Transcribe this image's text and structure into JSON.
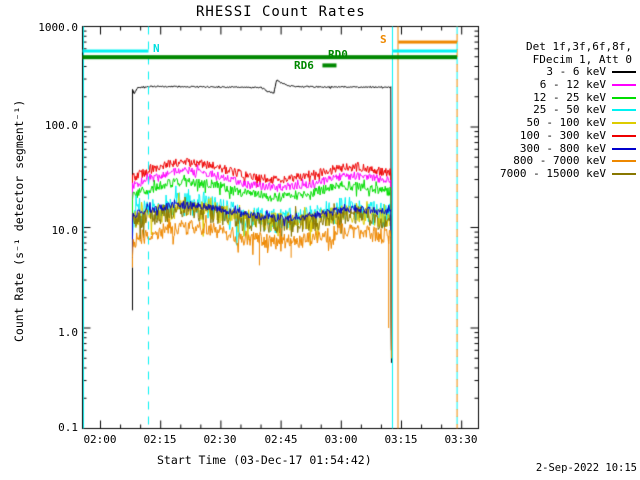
{
  "title": "RHESSI Count Rates",
  "footer": {
    "timestamp": "2-Sep-2022 10:15"
  },
  "chart_data": {
    "type": "line",
    "title": "RHESSI Count Rates",
    "xlabel": "Start Time (03-Dec-17 01:54:42)",
    "ylabel": "Count Rate (s⁻¹ detector segment⁻¹)",
    "yscale": "log",
    "ylim": [
      0.1,
      1000.0
    ],
    "y_ticks": [
      "1000.0",
      "100.0",
      "10.0",
      "1.0",
      "0.1"
    ],
    "x_ticks": [
      "02:00",
      "02:15",
      "02:30",
      "02:45",
      "03:00",
      "03:15",
      "03:30"
    ],
    "x_unit": "minutes after 02:00",
    "legend_header_1": "Det 1f,3f,6f,8f,",
    "legend_header_2": "FDecim 1, Att 0",
    "legend_position": "right-outside",
    "grid": false,
    "draw_order": [
      0,
      5,
      1,
      2,
      3,
      4,
      8,
      6,
      7
    ],
    "series": [
      {
        "name": "3 - 6 keV",
        "color": "#000000",
        "noise": 0.015,
        "rise_from": 1.5,
        "drop_to": 0.45,
        "points": [
          [
            7.97,
            236
          ],
          [
            8.4,
            214
          ],
          [
            9.3,
            248
          ],
          [
            12,
            252
          ],
          [
            20,
            252
          ],
          [
            30,
            250
          ],
          [
            40,
            247
          ],
          [
            41.6,
            226
          ],
          [
            43.2,
            218
          ],
          [
            43.9,
            295
          ],
          [
            45.2,
            272
          ],
          [
            47,
            258
          ],
          [
            50,
            252
          ],
          [
            56,
            250
          ],
          [
            62,
            250
          ],
          [
            68,
            248
          ],
          [
            72.5,
            250
          ]
        ]
      },
      {
        "name": "6 - 12 keV",
        "color": "#FF00FF",
        "noise": 0.09,
        "rise_from": 4,
        "drop_to": 0.6,
        "points": [
          [
            7.97,
            26
          ],
          [
            12,
            30
          ],
          [
            18,
            36
          ],
          [
            21,
            37
          ],
          [
            28,
            34
          ],
          [
            36,
            27
          ],
          [
            44,
            25
          ],
          [
            52,
            27
          ],
          [
            60,
            32
          ],
          [
            63,
            33
          ],
          [
            69,
            31
          ],
          [
            72.5,
            29
          ]
        ]
      },
      {
        "name": "12 - 25 keV",
        "color": "#00DD00",
        "noise": 0.11,
        "rise_from": 4,
        "drop_to": 0.6,
        "points": [
          [
            7.97,
            21
          ],
          [
            12,
            24
          ],
          [
            18,
            28
          ],
          [
            21,
            29
          ],
          [
            28,
            27
          ],
          [
            36,
            22
          ],
          [
            44,
            20
          ],
          [
            52,
            22
          ],
          [
            60,
            26
          ],
          [
            63,
            26
          ],
          [
            69,
            24
          ],
          [
            72.5,
            23
          ]
        ]
      },
      {
        "name": "25 - 50 keV",
        "color": "#00F2F2",
        "noise": 0.28,
        "rise_from": 4,
        "drop_to": 0.5,
        "points": [
          [
            7.97,
            13
          ],
          [
            12,
            15
          ],
          [
            18,
            17.5
          ],
          [
            21,
            18
          ],
          [
            28,
            16.5
          ],
          [
            36,
            13
          ],
          [
            44,
            12
          ],
          [
            52,
            13
          ],
          [
            60,
            15.5
          ],
          [
            63,
            16
          ],
          [
            69,
            14
          ],
          [
            72.5,
            13.5
          ]
        ]
      },
      {
        "name": "50 - 100 keV",
        "color": "#DDCC00",
        "noise": 0.22,
        "rise_from": 4,
        "drop_to": 0.6,
        "points": [
          [
            7.97,
            12
          ],
          [
            12,
            13.5
          ],
          [
            18,
            15
          ],
          [
            21,
            15.5
          ],
          [
            28,
            14.5
          ],
          [
            36,
            12.5
          ],
          [
            44,
            11.5
          ],
          [
            52,
            12
          ],
          [
            60,
            13.5
          ],
          [
            63,
            14
          ],
          [
            69,
            13
          ],
          [
            72.5,
            12.5
          ]
        ]
      },
      {
        "name": "100 - 300 keV",
        "color": "#EE0000",
        "noise": 0.1,
        "rise_from": 4,
        "drop_to": 0.6,
        "points": [
          [
            7.97,
            31
          ],
          [
            9,
            33
          ],
          [
            12,
            37
          ],
          [
            15,
            41
          ],
          [
            18,
            44
          ],
          [
            21,
            45
          ],
          [
            24,
            44
          ],
          [
            28,
            41
          ],
          [
            32,
            37
          ],
          [
            36,
            33
          ],
          [
            40,
            31
          ],
          [
            44,
            30
          ],
          [
            48,
            31
          ],
          [
            52,
            33
          ],
          [
            56,
            36
          ],
          [
            60,
            39
          ],
          [
            63,
            40
          ],
          [
            66,
            39
          ],
          [
            69,
            37
          ],
          [
            72.5,
            35
          ]
        ]
      },
      {
        "name": "300 - 800 keV",
        "color": "#0000CC",
        "noise": 0.09,
        "rise_from": 4,
        "drop_to": 0.6,
        "points": [
          [
            7.97,
            13.5
          ],
          [
            12,
            15
          ],
          [
            18,
            16.5
          ],
          [
            21,
            17
          ],
          [
            28,
            16
          ],
          [
            36,
            13.5
          ],
          [
            44,
            12.5
          ],
          [
            52,
            13
          ],
          [
            60,
            15
          ],
          [
            63,
            15.5
          ],
          [
            69,
            14.5
          ],
          [
            72.5,
            14
          ]
        ]
      },
      {
        "name": "800 - 7000 keV",
        "color": "#EE8800",
        "noise": 0.18,
        "rise_from": 4,
        "drop_to": 0.5,
        "spike_p": 0.012,
        "downspikes": [
          [
            39.6,
            4.2
          ],
          [
            47.5,
            5.0
          ],
          [
            71.8,
            1.0
          ]
        ],
        "points": [
          [
            7.97,
            7.5
          ],
          [
            12,
            8.5
          ],
          [
            18,
            9.8
          ],
          [
            21,
            10.2
          ],
          [
            28,
            9.5
          ],
          [
            36,
            8
          ],
          [
            44,
            7.2
          ],
          [
            52,
            7.8
          ],
          [
            60,
            9.3
          ],
          [
            63,
            9.5
          ],
          [
            69,
            8.5
          ],
          [
            72.5,
            8.2
          ]
        ]
      },
      {
        "name": "7000 - 15000 keV",
        "color": "#887700",
        "noise": 0.22,
        "rise_from": 4,
        "drop_to": 0.6,
        "points": [
          [
            7.97,
            11.5
          ],
          [
            12,
            13
          ],
          [
            18,
            14.5
          ],
          [
            21,
            15
          ],
          [
            28,
            14
          ],
          [
            36,
            12
          ],
          [
            44,
            11
          ],
          [
            52,
            11.5
          ],
          [
            60,
            13
          ],
          [
            63,
            13.5
          ],
          [
            69,
            12.5
          ],
          [
            72.5,
            12
          ]
        ]
      }
    ],
    "flag_bars": [
      {
        "label": "N",
        "color": "#00F2F2",
        "from_min": -4.48,
        "to_min": 11.96,
        "value": 570,
        "thick": 3
      },
      {
        "label": "",
        "color": "#00F2F2",
        "from_min": 72.9,
        "to_min": 88.85,
        "value": 570,
        "thick": 3
      },
      {
        "label": "S",
        "color": "#EE8800",
        "from_min": 74.2,
        "to_min": 88.85,
        "value": 700,
        "thick": 3
      },
      {
        "label": "RD0",
        "color": "#008800",
        "from_min": -4.48,
        "to_min": 88.85,
        "value": 495,
        "thick": 4
      },
      {
        "label": "RD6",
        "color": "#008800",
        "from_min": 55.3,
        "to_min": 58.8,
        "value": 410,
        "thick": 4
      }
    ],
    "v_lines": [
      {
        "at_min": -4.23,
        "color": "#00F2F2",
        "style": "solid"
      },
      {
        "at_min": 11.96,
        "color": "#00F2F2",
        "style": "dashed"
      },
      {
        "at_min": 72.75,
        "color": "#00F2F2",
        "style": "solid"
      },
      {
        "at_min": 74.13,
        "color": "#EE8800",
        "style": "solid"
      },
      {
        "at_min": 88.85,
        "color": "#00F2F2",
        "style": "dashed"
      },
      {
        "at_min": 88.85,
        "color": "#EE8800",
        "style": "dashed-offset"
      }
    ]
  }
}
